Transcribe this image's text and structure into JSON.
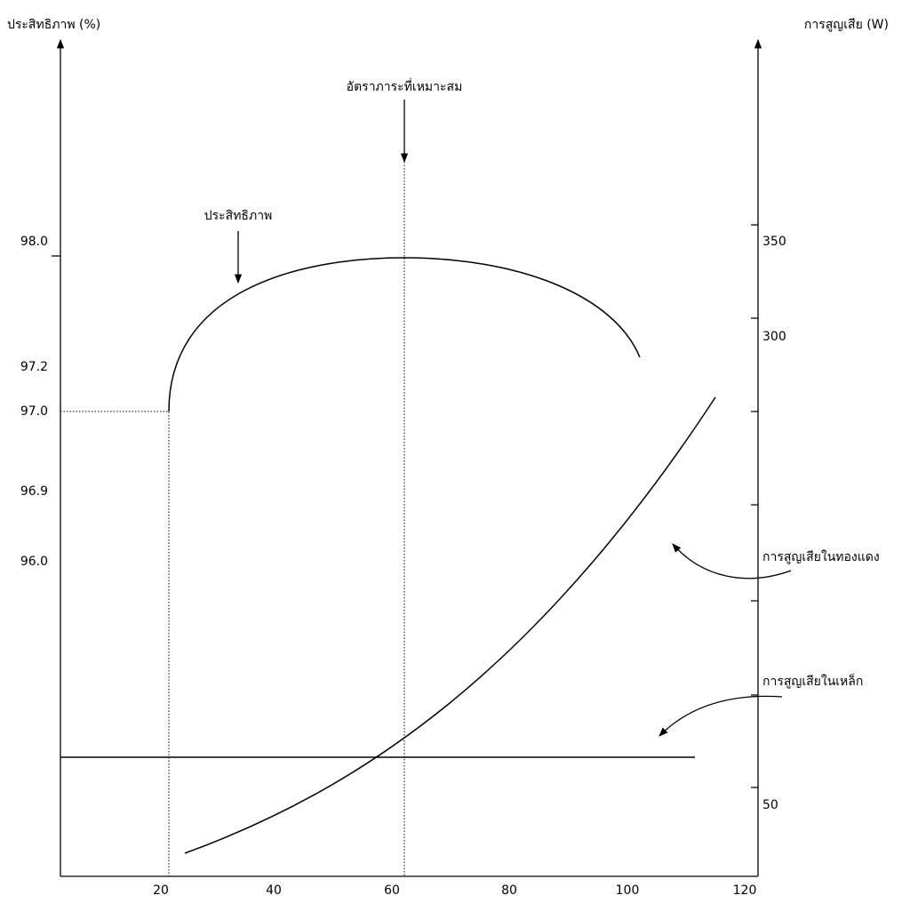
{
  "left_axis": {
    "title": "ประสิทธิภาพ (%)",
    "ticks": [
      "98.0",
      "97.2",
      "97.0",
      "96.9",
      "96.0"
    ]
  },
  "right_axis": {
    "title": "การสูญเสีย (W)",
    "ticks": [
      "350",
      "300",
      "50"
    ]
  },
  "x_axis": {
    "ticks": [
      "20",
      "40",
      "60",
      "80",
      "100",
      "120"
    ]
  },
  "annotations": {
    "optimal_load": "อัตราภาระที่เหมาะสม",
    "efficiency": "ประสิทธิภาพ",
    "copper_loss": "การสูญเสียในทองแดง",
    "iron_loss": "การสูญเสียในเหล็ก"
  }
}
